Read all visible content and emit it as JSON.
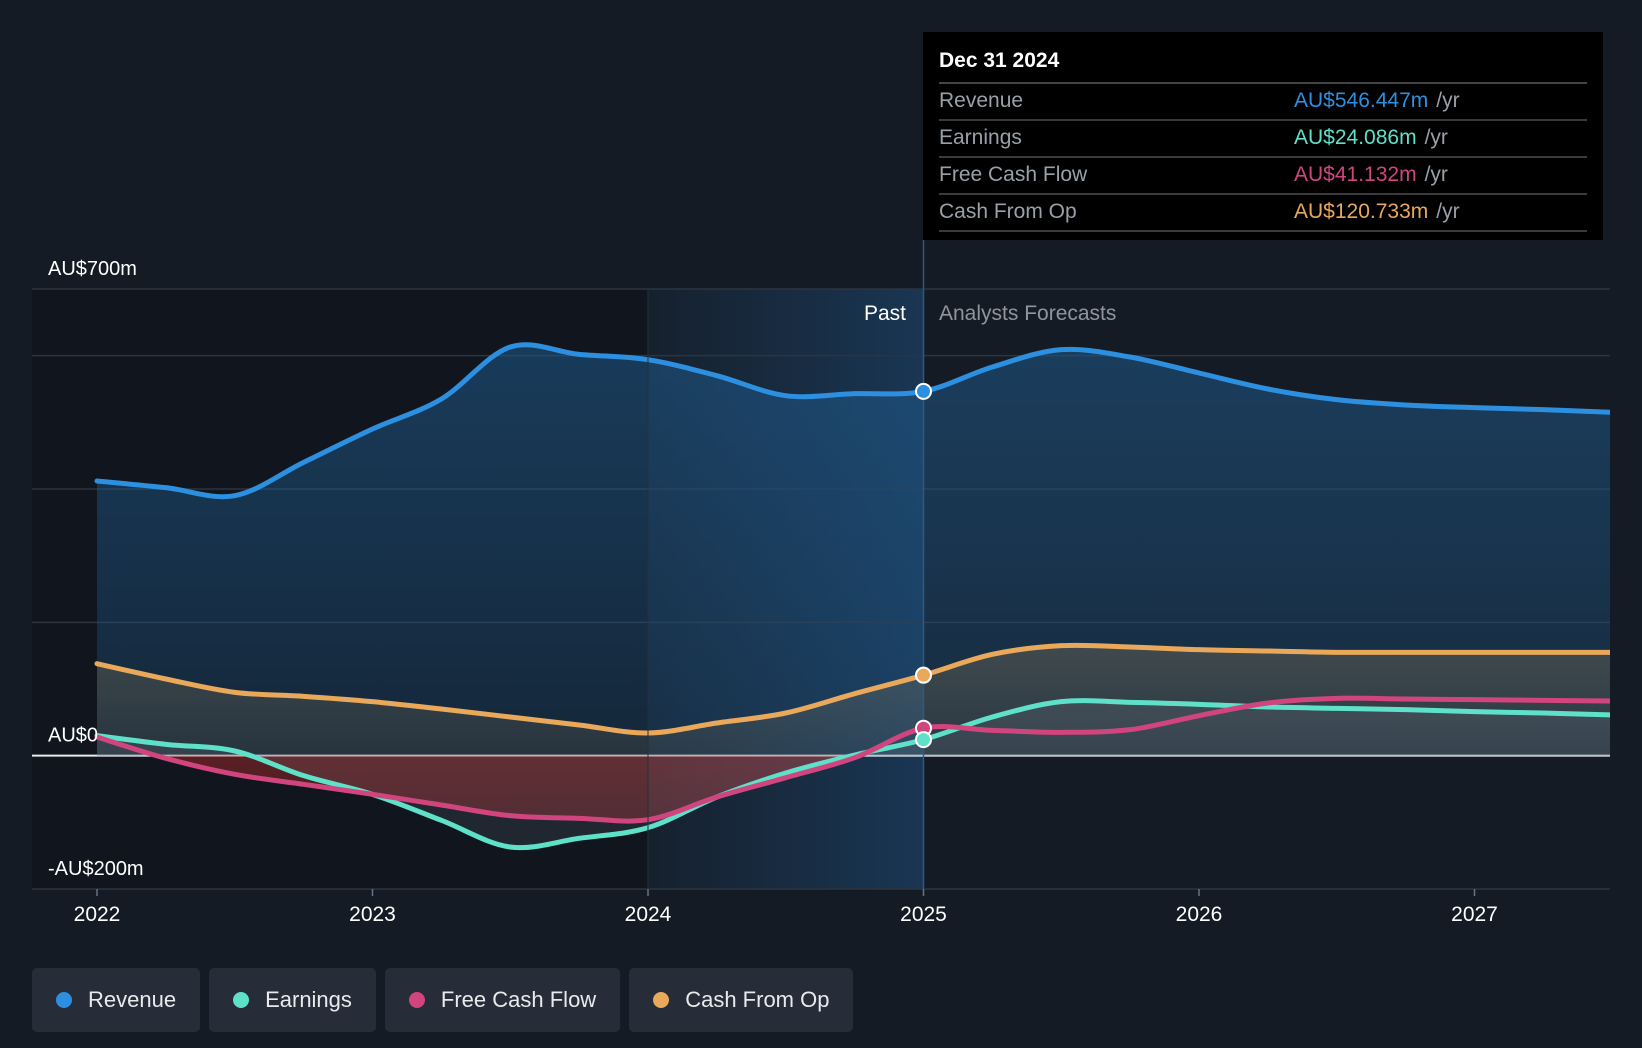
{
  "chart_data": {
    "type": "line",
    "title": "",
    "y_axis": {
      "labels": [
        {
          "value": 700,
          "text": "AU$700m"
        },
        {
          "value": 0,
          "text": "AU$0"
        },
        {
          "value": -200,
          "text": "-AU$200m"
        }
      ],
      "ylim": [
        -200,
        700
      ],
      "gridlines": [
        700,
        600,
        400,
        200,
        0,
        -200
      ]
    },
    "x_axis": {
      "ticks": [
        {
          "value": 2022,
          "text": "2022"
        },
        {
          "value": 2023,
          "text": "2023"
        },
        {
          "value": 2024,
          "text": "2024"
        },
        {
          "value": 2025,
          "text": "2025"
        },
        {
          "value": 2026,
          "text": "2026"
        },
        {
          "value": 2027,
          "text": "2027"
        }
      ],
      "xlim": [
        2021.77,
        2027.5
      ]
    },
    "regions": {
      "past_label": "Past",
      "forecast_label": "Analysts Forecasts",
      "divider_x": 2025.0,
      "highlight_start_x": 2024.0
    },
    "series": [
      {
        "name": "Revenue",
        "color": "#2d8fe0",
        "points": [
          [
            2022.0,
            412
          ],
          [
            2022.25,
            402
          ],
          [
            2022.5,
            390
          ],
          [
            2022.75,
            440
          ],
          [
            2023.0,
            490
          ],
          [
            2023.25,
            535
          ],
          [
            2023.5,
            613
          ],
          [
            2023.75,
            602
          ],
          [
            2024.0,
            594
          ],
          [
            2024.25,
            570
          ],
          [
            2024.5,
            540
          ],
          [
            2024.75,
            543
          ],
          [
            2025.0,
            546.447
          ],
          [
            2025.25,
            583
          ],
          [
            2025.5,
            609
          ],
          [
            2025.75,
            598
          ],
          [
            2026.0,
            574
          ],
          [
            2026.25,
            550
          ],
          [
            2026.5,
            534
          ],
          [
            2026.75,
            526
          ],
          [
            2027.0,
            522
          ],
          [
            2027.25,
            519
          ],
          [
            2027.5,
            515
          ]
        ]
      },
      {
        "name": "Earnings",
        "color": "#5fe0c8",
        "points": [
          [
            2022.0,
            30
          ],
          [
            2022.25,
            17
          ],
          [
            2022.5,
            7
          ],
          [
            2022.75,
            -30
          ],
          [
            2023.0,
            -58
          ],
          [
            2023.25,
            -97
          ],
          [
            2023.5,
            -137
          ],
          [
            2023.75,
            -124
          ],
          [
            2024.0,
            -108
          ],
          [
            2024.25,
            -62
          ],
          [
            2024.5,
            -26
          ],
          [
            2024.75,
            1
          ],
          [
            2025.0,
            24.086
          ],
          [
            2025.25,
            58
          ],
          [
            2025.5,
            81
          ],
          [
            2025.75,
            80
          ],
          [
            2026.0,
            77
          ],
          [
            2026.25,
            73
          ],
          [
            2026.5,
            71
          ],
          [
            2026.75,
            69
          ],
          [
            2027.0,
            66
          ],
          [
            2027.25,
            64
          ],
          [
            2027.5,
            61
          ]
        ]
      },
      {
        "name": "Free Cash Flow",
        "color": "#d1457f",
        "points": [
          [
            2022.0,
            28
          ],
          [
            2022.25,
            -4
          ],
          [
            2022.5,
            -28
          ],
          [
            2022.75,
            -43
          ],
          [
            2023.0,
            -58
          ],
          [
            2023.25,
            -74
          ],
          [
            2023.5,
            -90
          ],
          [
            2023.75,
            -94
          ],
          [
            2024.0,
            -96
          ],
          [
            2024.25,
            -62
          ],
          [
            2024.5,
            -33
          ],
          [
            2024.75,
            -3
          ],
          [
            2025.0,
            41.132
          ],
          [
            2025.25,
            38
          ],
          [
            2025.5,
            35
          ],
          [
            2025.75,
            39
          ],
          [
            2026.0,
            60
          ],
          [
            2026.25,
            79
          ],
          [
            2026.5,
            86
          ],
          [
            2026.75,
            85
          ],
          [
            2027.0,
            84
          ],
          [
            2027.25,
            83
          ],
          [
            2027.5,
            82
          ]
        ]
      },
      {
        "name": "Cash From Op",
        "color": "#e9a85a",
        "points": [
          [
            2022.0,
            138
          ],
          [
            2022.25,
            115
          ],
          [
            2022.5,
            95
          ],
          [
            2022.75,
            89
          ],
          [
            2023.0,
            81
          ],
          [
            2023.25,
            70
          ],
          [
            2023.5,
            58
          ],
          [
            2023.75,
            46
          ],
          [
            2024.0,
            34
          ],
          [
            2024.25,
            49
          ],
          [
            2024.5,
            64
          ],
          [
            2024.75,
            93
          ],
          [
            2025.0,
            120.733
          ],
          [
            2025.25,
            152
          ],
          [
            2025.5,
            165
          ],
          [
            2025.75,
            163
          ],
          [
            2026.0,
            159
          ],
          [
            2026.25,
            157
          ],
          [
            2026.5,
            155
          ],
          [
            2026.75,
            155
          ],
          [
            2027.0,
            155
          ],
          [
            2027.25,
            155
          ],
          [
            2027.5,
            155
          ]
        ]
      }
    ],
    "highlight_point_x": 2025.0
  },
  "tooltip": {
    "date": "Dec 31 2024",
    "rows": [
      {
        "label": "Revenue",
        "value": "AU$546.447m",
        "unit": "/yr",
        "color": "#2d8fe0"
      },
      {
        "label": "Earnings",
        "value": "AU$24.086m",
        "unit": "/yr",
        "color": "#5fe0c8"
      },
      {
        "label": "Free Cash Flow",
        "value": "AU$41.132m",
        "unit": "/yr",
        "color": "#d1457f"
      },
      {
        "label": "Cash From Op",
        "value": "AU$120.733m",
        "unit": "/yr",
        "color": "#e9a85a"
      }
    ]
  },
  "legend": [
    {
      "label": "Revenue",
      "color": "#2d8fe0"
    },
    {
      "label": "Earnings",
      "color": "#5fe0c8"
    },
    {
      "label": "Free Cash Flow",
      "color": "#d1457f"
    },
    {
      "label": "Cash From Op",
      "color": "#e9a85a"
    }
  ]
}
